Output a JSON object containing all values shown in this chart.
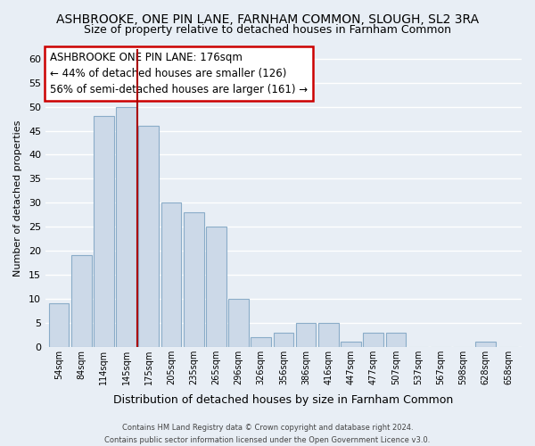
{
  "title": "ASHBROOKE, ONE PIN LANE, FARNHAM COMMON, SLOUGH, SL2 3RA",
  "subtitle": "Size of property relative to detached houses in Farnham Common",
  "xlabel": "Distribution of detached houses by size in Farnham Common",
  "ylabel": "Number of detached properties",
  "bar_labels": [
    "54sqm",
    "84sqm",
    "114sqm",
    "145sqm",
    "175sqm",
    "205sqm",
    "235sqm",
    "265sqm",
    "296sqm",
    "326sqm",
    "356sqm",
    "386sqm",
    "416sqm",
    "447sqm",
    "477sqm",
    "507sqm",
    "537sqm",
    "567sqm",
    "598sqm",
    "628sqm",
    "658sqm"
  ],
  "bar_values": [
    9,
    19,
    48,
    50,
    46,
    30,
    28,
    25,
    10,
    2,
    3,
    5,
    5,
    1,
    3,
    3,
    0,
    0,
    0,
    1,
    0
  ],
  "bar_color": "#ccd9e8",
  "bar_edge_color": "#8aacc8",
  "ylim": [
    0,
    62
  ],
  "yticks": [
    0,
    5,
    10,
    15,
    20,
    25,
    30,
    35,
    40,
    45,
    50,
    55,
    60
  ],
  "annotation_title": "ASHBROOKE ONE PIN LANE: 176sqm",
  "annotation_line1": "← 44% of detached houses are smaller (126)",
  "annotation_line2": "56% of semi-detached houses are larger (161) →",
  "property_line_index": 3,
  "footer1": "Contains HM Land Registry data © Crown copyright and database right 2024.",
  "footer2": "Contains public sector information licensed under the Open Government Licence v3.0.",
  "background_color": "#e8eef5",
  "grid_color": "#d0dae4",
  "vline_color": "#aa0000",
  "title_fontsize": 10,
  "subtitle_fontsize": 9,
  "ylabel_fontsize": 8,
  "xlabel_fontsize": 9
}
